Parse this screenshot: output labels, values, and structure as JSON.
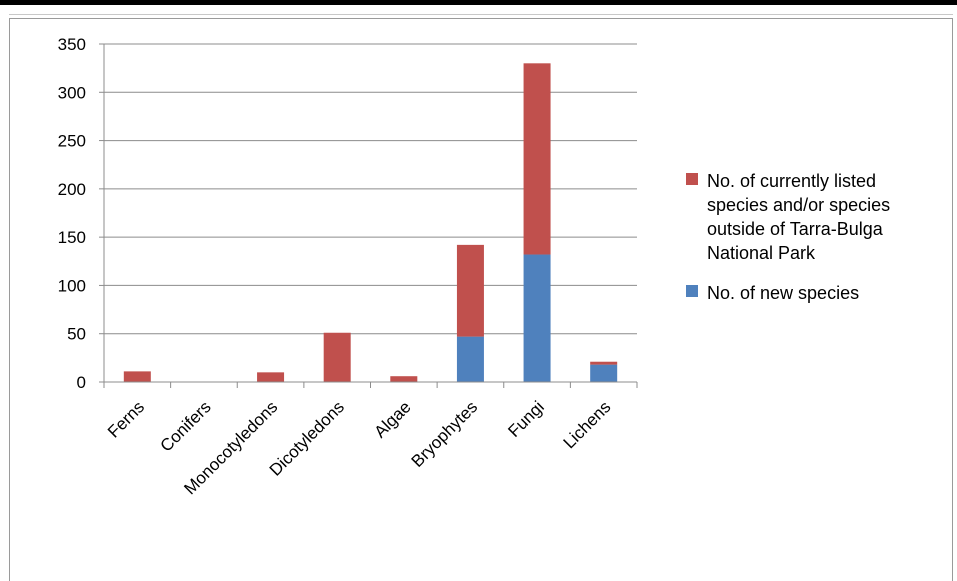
{
  "chart_data": {
    "type": "bar",
    "stacked": true,
    "title": "",
    "xlabel": "",
    "ylabel": "",
    "categories": [
      "Ferns",
      "Conifers",
      "Monocotyledons",
      "Dicotyledons",
      "Algae",
      "Bryophytes",
      "Fungi",
      "Lichens"
    ],
    "series": [
      {
        "name": "No. of new species",
        "color": "#4f81bd",
        "values": [
          0,
          0,
          0,
          0,
          0,
          47,
          132,
          18
        ]
      },
      {
        "name": "No. of currently listed species and/or species outside of Tarra-Bulga National Park",
        "color": "#c0504d",
        "values": [
          11,
          0,
          10,
          51,
          6,
          95,
          198,
          3
        ]
      }
    ],
    "ylim": [
      0,
      350
    ],
    "yticks": [
      "0",
      "50",
      "100",
      "150",
      "200",
      "250",
      "300",
      "350"
    ],
    "grid": true,
    "legend_position": "right",
    "legend_order": [
      1,
      0
    ],
    "legend_lines": [
      [
        "No. of currently listed",
        "species and/or species",
        "outside of Tarra-Bulga",
        "National Park"
      ],
      [
        "No. of new species"
      ]
    ]
  }
}
